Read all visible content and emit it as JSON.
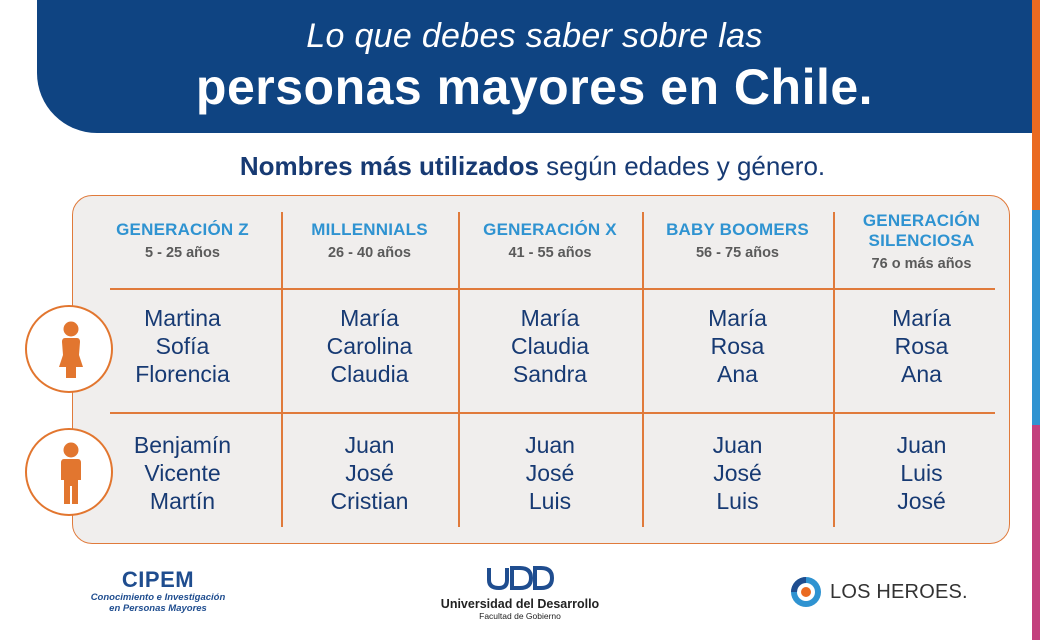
{
  "header": {
    "line1": "Lo que debes saber sobre las",
    "line2": "personas mayores en Chile."
  },
  "subtitle": {
    "bold": "Nombres más utilizados",
    "rest": " según edades y género."
  },
  "generations": [
    {
      "name": "GENERACIÓN Z",
      "ages": "5 - 25 años",
      "female": [
        "Martina",
        "Sofía",
        "Florencia"
      ],
      "male": [
        "Benjamín",
        "Vicente",
        "Martín"
      ]
    },
    {
      "name": "MILLENNIALS",
      "ages": "26 - 40 años",
      "female": [
        "María",
        "Carolina",
        "Claudia"
      ],
      "male": [
        "Juan",
        "José",
        "Cristian"
      ]
    },
    {
      "name": "GENERACIÓN X",
      "ages": "41 - 55 años",
      "female": [
        "María",
        "Claudia",
        "Sandra"
      ],
      "male": [
        "Juan",
        "José",
        "Luis"
      ]
    },
    {
      "name": "BABY BOOMERS",
      "ages": "56 - 75 años",
      "female": [
        "María",
        "Rosa",
        "Ana"
      ],
      "male": [
        "Juan",
        "José",
        "Luis"
      ]
    },
    {
      "name_line1": "GENERACIÓN",
      "name_line2": "SILENCIOSA",
      "ages": "76 o más años",
      "female": [
        "María",
        "Rosa",
        "Ana"
      ],
      "male": [
        "Juan",
        "Luis",
        "José"
      ]
    }
  ],
  "icons": {
    "female": "female-person-icon",
    "male": "male-person-icon"
  },
  "footer": {
    "cipem_title": "CIPEM",
    "cipem_sub1": "Conocimiento e Investigación",
    "cipem_sub2": "en Personas Mayores",
    "udd_logo": "UDD",
    "udd_name": "Universidad del Desarrollo",
    "udd_sub": "Facultad de Gobierno",
    "lh_name": "LOS HEROES."
  },
  "colors": {
    "navy": "#0f4482",
    "text_navy": "#173a73",
    "accent_blue": "#2f93d1",
    "orange": "#e2762f",
    "panel_bg": "#f0eeed",
    "magenta": "#c3407d"
  }
}
